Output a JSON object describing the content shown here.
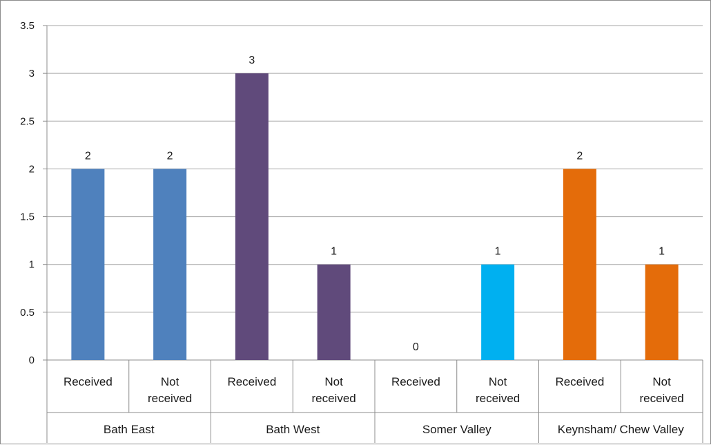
{
  "chart_data": {
    "type": "bar",
    "groups": [
      {
        "name": "Bath East",
        "color": "#4f81bd",
        "categories": [
          "Received",
          "Not received"
        ],
        "values": [
          2,
          2
        ]
      },
      {
        "name": "Bath West",
        "color": "#604a7b",
        "categories": [
          "Received",
          "Not received"
        ],
        "values": [
          3,
          1
        ]
      },
      {
        "name": "Somer Valley",
        "color": "#00b0f0",
        "categories": [
          "Received",
          "Not received"
        ],
        "values": [
          0,
          1
        ]
      },
      {
        "name": "Keynsham/ Chew Valley",
        "color": "#e46c0a",
        "categories": [
          "Received",
          "Not received"
        ],
        "values": [
          2,
          1
        ]
      }
    ],
    "yticks": [
      "0",
      "0.5",
      "1",
      "1.5",
      "2",
      "2.5",
      "3",
      "3.5"
    ],
    "ylim": [
      0,
      3.5
    ],
    "grid": true,
    "data_labels": true,
    "legend": "none",
    "gridline_color": "#a6a6a6"
  }
}
